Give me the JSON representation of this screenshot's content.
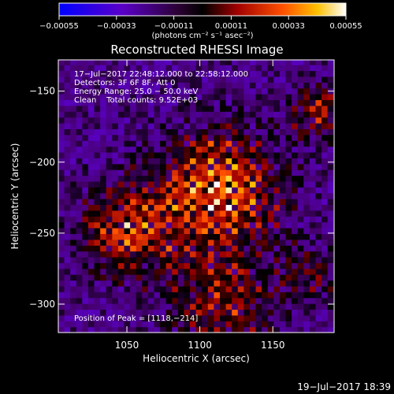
{
  "chart_data": {
    "type": "heatmap",
    "title": "Reconstructed RHESSI Image",
    "xlabel": "Heliocentric X (arcsec)",
    "ylabel": "Heliocentric Y (arcsec)",
    "xlim": [
      1003,
      1192
    ],
    "ylim": [
      -320,
      -128
    ],
    "x_ticks": [
      1050,
      1100,
      1150
    ],
    "y_ticks": [
      -300,
      -250,
      -200,
      -150
    ],
    "x_tick_labels": [
      "1050",
      "1100",
      "1150"
    ],
    "y_tick_labels": [
      "−300",
      "−250",
      "−200",
      "−150"
    ],
    "colorbar": {
      "range": [
        -0.00055,
        0.00055
      ],
      "ticks": [
        -0.00055,
        -0.00033,
        -0.00011,
        0.00011,
        0.00033,
        0.00055
      ],
      "tick_labels": [
        "−0.00055",
        "−0.00033",
        "−0.00011",
        "0.00011",
        "0.00033",
        "0.00055"
      ],
      "units_label": "(photons cm⁻² s⁻¹ asec⁻²)"
    },
    "annotations": [
      "17−Jul−2017 22:48:12.000 to 22:58:12.000",
      "Detectors: 3F 6F 8F, Att 0",
      "Energy Range: 25.0 − 50.0 keV",
      "Clean    Total counts: 9.52E+03"
    ],
    "peak_label": "Position of Peak = [1118,−214]",
    "peak": [
      1118,
      -214
    ],
    "sources": [
      {
        "x": 1110,
        "y": -222,
        "amp": 1.0,
        "sigma": 28
      },
      {
        "x": 1048,
        "y": -250,
        "amp": 0.75,
        "sigma": 22
      },
      {
        "x": 1112,
        "y": -300,
        "amp": 0.6,
        "sigma": 24
      },
      {
        "x": 1180,
        "y": -165,
        "amp": 0.55,
        "sigma": 14
      },
      {
        "x": 1175,
        "y": -280,
        "amp": 0.35,
        "sigma": 16
      }
    ]
  },
  "footer_timestamp": "19−Jul−2017 18:39"
}
